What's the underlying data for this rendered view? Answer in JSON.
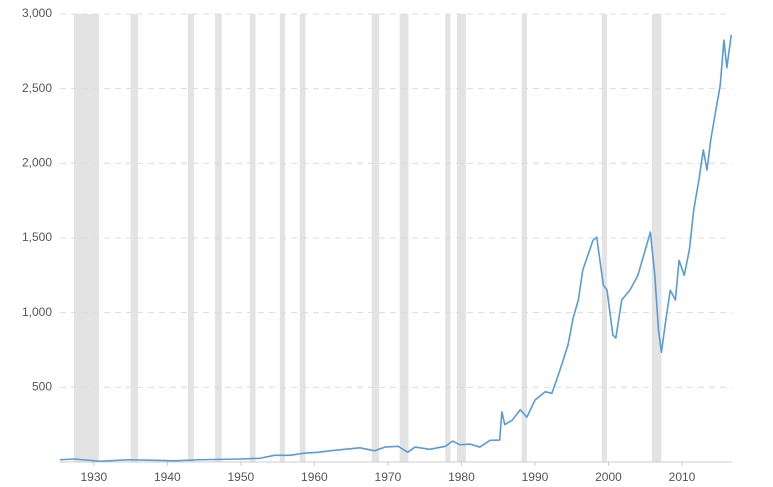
{
  "chart_data": {
    "type": "line",
    "x": [
      1925.4,
      1927.4,
      1930.8,
      1934.9,
      1937.6,
      1941.0,
      1944.4,
      1949.9,
      1952.6,
      1954.6,
      1956.7,
      1958.7,
      1960.5,
      1962.1,
      1964.1,
      1966.2,
      1968.2,
      1969.6,
      1971.4,
      1972.7,
      1973.7,
      1975.7,
      1977.8,
      1978.8,
      1979.8,
      1981.2,
      1982.5,
      1983.9,
      1985.2,
      1985.5,
      1985.9,
      1986.9,
      1988.0,
      1988.9,
      1990.0,
      1991.4,
      1992.3,
      1993.4,
      1994.5,
      1995.2,
      1995.9,
      1996.5,
      1997.2,
      1997.9,
      1998.4,
      1999.3,
      1999.8,
      2000.6,
      2001.0,
      2001.8,
      2002.9,
      2004.0,
      2005.0,
      2005.7,
      2006.3,
      2006.8,
      2007.2,
      2007.8,
      2008.4,
      2009.1,
      2009.6,
      2010.3,
      2011.0,
      2011.6,
      2012.3,
      2012.9,
      2013.4,
      2013.9,
      2014.6,
      2015.2,
      2015.7,
      2016.1,
      2016.7
    ],
    "values": [
      15,
      20,
      5,
      15,
      12,
      8,
      15,
      20,
      25,
      45,
      45,
      60,
      65,
      75,
      85,
      95,
      75,
      100,
      105,
      65,
      100,
      85,
      105,
      140,
      115,
      120,
      100,
      145,
      147,
      335,
      250,
      280,
      350,
      300,
      415,
      470,
      460,
      615,
      785,
      965,
      1085,
      1285,
      1385,
      1485,
      1505,
      1185,
      1150,
      850,
      830,
      1085,
      1150,
      1250,
      1420,
      1540,
      1250,
      885,
      735,
      950,
      1150,
      1085,
      1350,
      1250,
      1420,
      1690,
      1890,
      2090,
      1955,
      2155,
      2355,
      2525,
      2825,
      2640,
      2860
    ],
    "color": "#5b9bd5",
    "recessions": [
      [
        1927.3,
        1930.7
      ],
      [
        1935.0,
        1936.0
      ],
      [
        1942.8,
        1943.6
      ],
      [
        1946.5,
        1947.4
      ],
      [
        1951.2,
        1952.0
      ],
      [
        1955.3,
        1956.0
      ],
      [
        1958.0,
        1958.8
      ],
      [
        1967.8,
        1968.8
      ],
      [
        1971.6,
        1972.8
      ],
      [
        1977.8,
        1978.5
      ],
      [
        1979.4,
        1980.6
      ],
      [
        1988.2,
        1988.9
      ],
      [
        1999.1,
        1999.8
      ],
      [
        2005.9,
        2007.2
      ]
    ],
    "recession_color": "#e3e3e3",
    "xlim": [
      1925.4,
      2016.8
    ],
    "xticks": [
      1930,
      1940,
      1950,
      1960,
      1970,
      1980,
      1990,
      2000,
      2010
    ],
    "ylim": [
      0,
      3000
    ],
    "yticks": [
      500,
      {
        "value": 1000,
        "label": "1,000"
      },
      {
        "value": 1500,
        "label": "1,500"
      },
      {
        "value": 2000,
        "label": "2,000"
      },
      {
        "value": 2500,
        "label": "2,500"
      },
      {
        "value": 3000,
        "label": "3,000"
      }
    ],
    "grid": true
  }
}
